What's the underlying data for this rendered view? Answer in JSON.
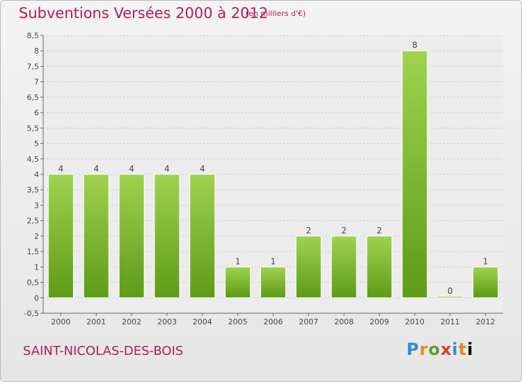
{
  "header": {
    "title": "Subventions Versées 2000 à 2012",
    "unit": "(en milliers d'€)"
  },
  "footer": {
    "commune": "SAINT-NICOLAS-DES-BOIS",
    "logo_letters": [
      "P",
      "r",
      "o",
      "x",
      "i",
      "t",
      "i"
    ]
  },
  "colors": {
    "title": "#b01a5b",
    "bar_light": "#9fd24f",
    "bar_dark": "#5e9b17",
    "grid": "#c8c8c8"
  },
  "chart_data": {
    "type": "bar",
    "title": "Subventions Versées 2000 à 2012",
    "subtitle": "(en milliers d'€)",
    "xlabel": "",
    "ylabel": "",
    "categories": [
      "2000",
      "2001",
      "2002",
      "2003",
      "2004",
      "2005",
      "2006",
      "2007",
      "2008",
      "2009",
      "2010",
      "2011",
      "2012"
    ],
    "values": [
      4,
      4,
      4,
      4,
      4,
      1,
      1,
      2,
      2,
      2,
      8,
      0,
      1
    ],
    "data_labels": [
      "4",
      "4",
      "4",
      "4",
      "4",
      "1",
      "1",
      "2",
      "2",
      "2",
      "8",
      "0",
      "1"
    ],
    "yticks": [
      "-0,5",
      "0",
      "0,5",
      "1",
      "1,5",
      "2",
      "2,5",
      "3",
      "3,5",
      "4",
      "4,5",
      "5",
      "5,5",
      "6",
      "6,5",
      "7",
      "7,5",
      "8",
      "8,5"
    ],
    "ylim": [
      -0.5,
      8.5
    ],
    "grid": true,
    "legend": "none"
  }
}
